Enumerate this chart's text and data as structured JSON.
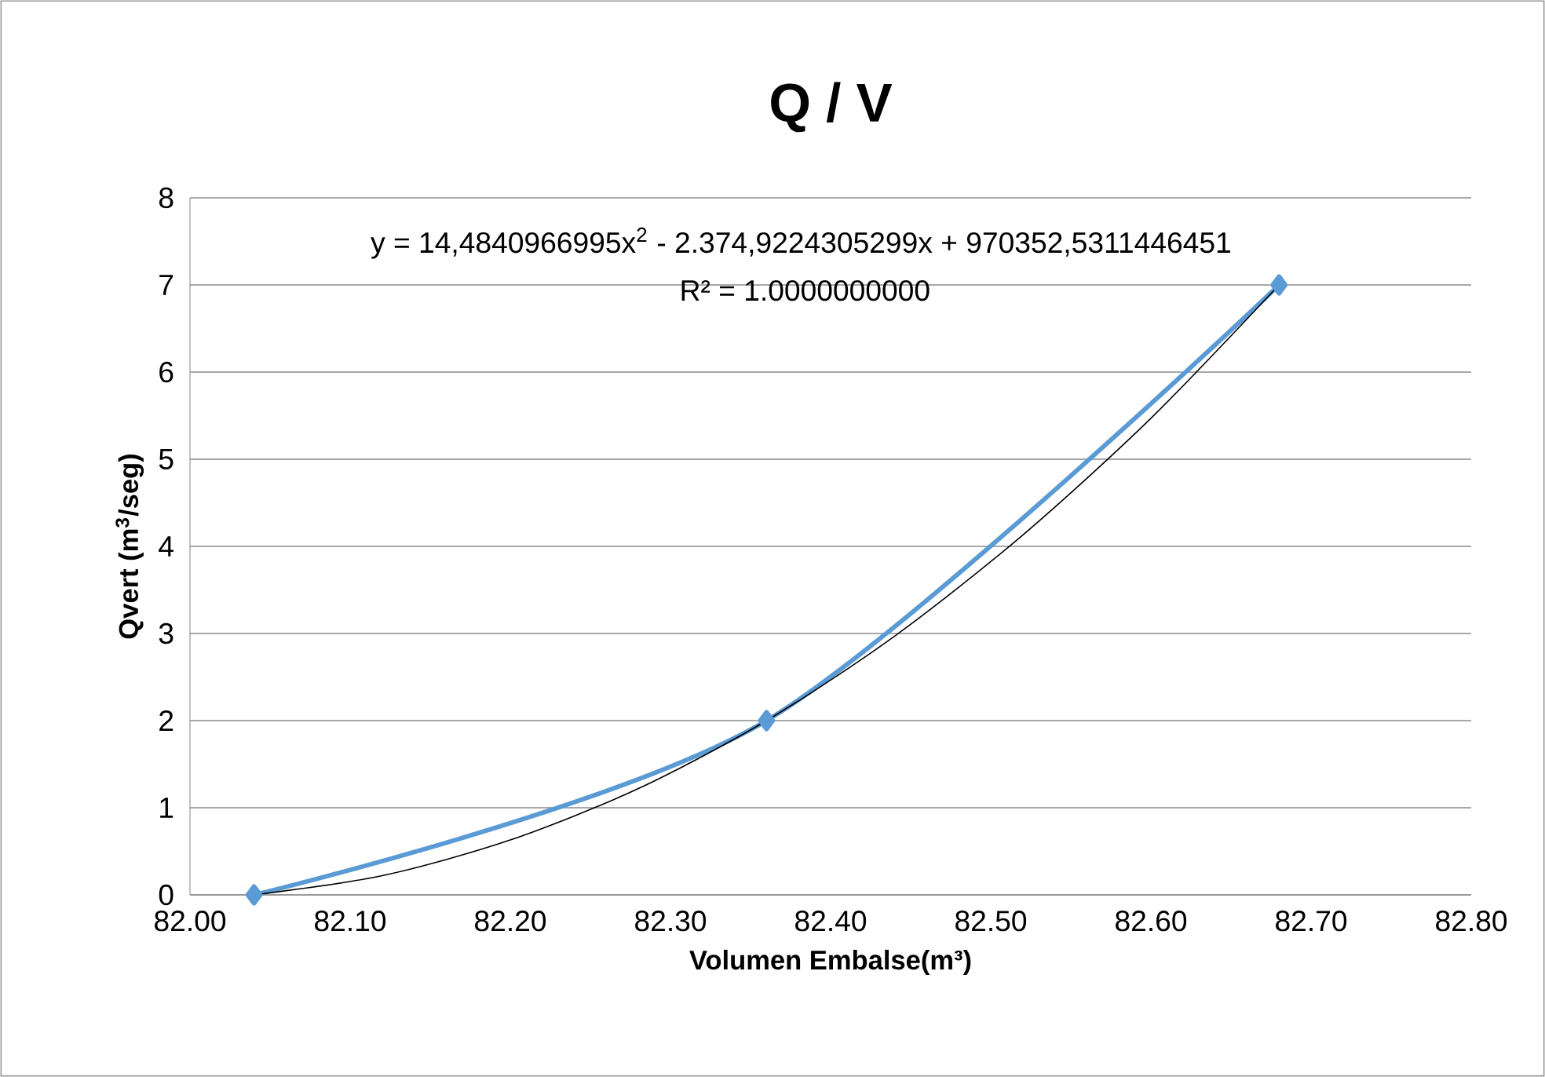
{
  "chart_data": {
    "type": "line",
    "title": "Q / V",
    "xlabel": "Volumen Embalse(m³)",
    "ylabel": "Qvert (m$^{3}$/seg)",
    "annotations": [
      "y = 14,4840966995x$^{2}$ - 2.374,9224305299x + 970352,5311446451",
      "R² = 1.0000000000"
    ],
    "x": [
      82.04,
      82.36,
      82.68
    ],
    "series": [
      {
        "color": "#5b9bd5",
        "values": [
          0,
          2,
          7
        ],
        "marker": "diamond"
      },
      {
        "type": "line",
        "color": "#000000",
        "marker": "none",
        "x": [
          82.04,
          82.12,
          82.2,
          82.28,
          82.36,
          82.44,
          82.52,
          82.6,
          82.68
        ],
        "values": [
          0,
          0.22,
          0.63,
          1.22,
          2,
          2.97,
          4.13,
          5.47,
          7
        ]
      }
    ],
    "xlim": [
      82.0,
      82.8
    ],
    "xticks": [
      {
        "value": 82.0,
        "label": "82.00"
      },
      {
        "value": 82.1,
        "label": "82.10"
      },
      {
        "value": 82.2,
        "label": "82.20"
      },
      {
        "value": 82.3,
        "label": "82.30"
      },
      {
        "value": 82.4,
        "label": "82.40"
      },
      {
        "value": 82.5,
        "label": "82.50"
      },
      {
        "value": 82.6,
        "label": "82.60"
      },
      {
        "value": 82.7,
        "label": "82.70"
      },
      {
        "value": 82.8,
        "label": "82.80"
      }
    ],
    "ylim": [
      0,
      8
    ],
    "yticks": [
      0,
      1,
      2,
      3,
      4,
      5,
      6,
      7,
      8
    ],
    "grid": "y"
  }
}
